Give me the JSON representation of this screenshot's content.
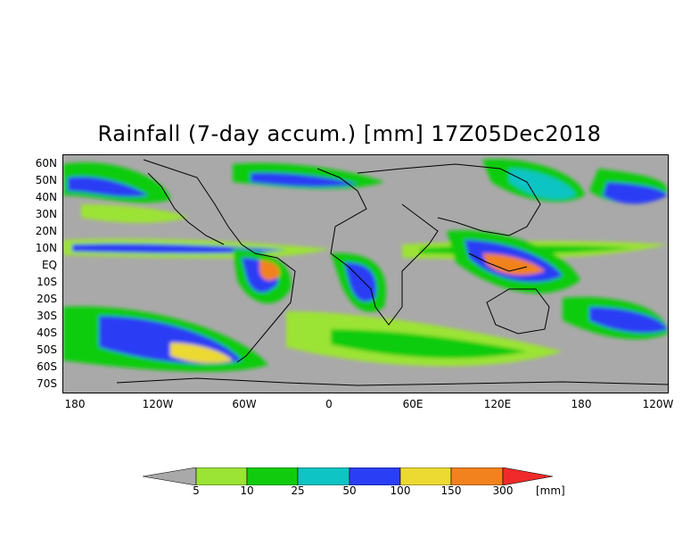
{
  "title": "Rainfall (7-day accum.) [mm] 17Z05Dec2018",
  "latitude_labels": [
    "60N",
    "50N",
    "40N",
    "30N",
    "20N",
    "10N",
    "EQ",
    "10S",
    "20S",
    "30S",
    "40S",
    "50S",
    "60S",
    "70S"
  ],
  "longitude_labels": [
    "180",
    "120W",
    "60W",
    "0",
    "60E",
    "120E",
    "180",
    "120W"
  ],
  "legend": {
    "unit": "[mm]",
    "thresholds": [
      "5",
      "10",
      "25",
      "50",
      "100",
      "150",
      "300"
    ],
    "colors": {
      "below": "#a9a9a9",
      "bins": [
        "#9be335",
        "#11cc0e",
        "#0fc4c4",
        "#2a3ef5",
        "#ecd932",
        "#f2821e"
      ],
      "above": "#f02a2a"
    }
  },
  "colors": {
    "ocean_land_no_rain": "#a9a9a9",
    "coastline": "#000000"
  }
}
